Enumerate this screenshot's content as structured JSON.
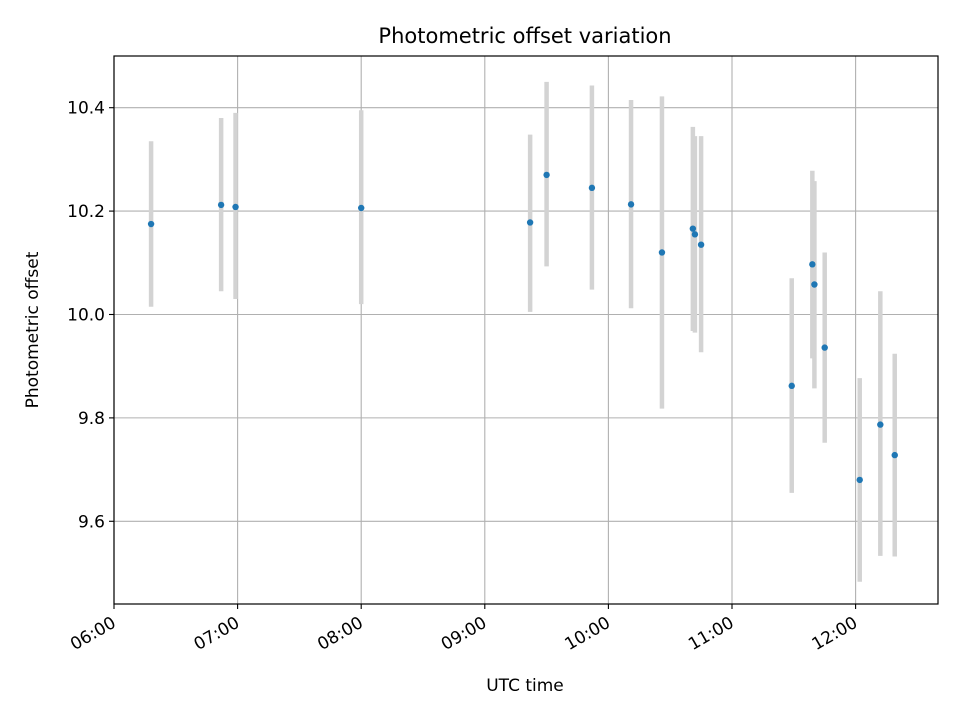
{
  "chart_data": {
    "type": "scatter",
    "title": "Photometric offset variation",
    "xlabel": "UTC time",
    "ylabel": "Photometric offset",
    "x_axis": {
      "type": "time",
      "range": [
        "06:00",
        "12:40"
      ],
      "ticks": [
        "06:00",
        "07:00",
        "08:00",
        "09:00",
        "10:00",
        "11:00",
        "12:00"
      ]
    },
    "y_axis": {
      "range": [
        9.44,
        10.5
      ],
      "ticks": [
        9.6,
        9.8,
        10.0,
        10.2,
        10.4
      ],
      "tick_labels": [
        "9.6",
        "9.8",
        "10.0",
        "10.2",
        "10.4"
      ]
    },
    "grid": true,
    "marker_color": "#1f77b4",
    "errorbar_color": "#d3d3d3",
    "points": [
      {
        "time": "06:18",
        "y": 10.175,
        "ylow": 10.015,
        "yhigh": 10.335
      },
      {
        "time": "06:52",
        "y": 10.212,
        "ylow": 10.045,
        "yhigh": 10.38
      },
      {
        "time": "06:59",
        "y": 10.208,
        "ylow": 10.03,
        "yhigh": 10.39
      },
      {
        "time": "08:00",
        "y": 10.206,
        "ylow": 10.02,
        "yhigh": 10.395
      },
      {
        "time": "09:22",
        "y": 10.178,
        "ylow": 10.005,
        "yhigh": 10.348
      },
      {
        "time": "09:30",
        "y": 10.27,
        "ylow": 10.093,
        "yhigh": 10.45
      },
      {
        "time": "09:52",
        "y": 10.245,
        "ylow": 10.048,
        "yhigh": 10.443
      },
      {
        "time": "10:11",
        "y": 10.213,
        "ylow": 10.012,
        "yhigh": 10.415
      },
      {
        "time": "10:26",
        "y": 10.12,
        "ylow": 9.818,
        "yhigh": 10.422
      },
      {
        "time": "10:41",
        "y": 10.166,
        "ylow": 9.968,
        "yhigh": 10.363
      },
      {
        "time": "10:42",
        "y": 10.155,
        "ylow": 9.965,
        "yhigh": 10.345
      },
      {
        "time": "10:45",
        "y": 10.135,
        "ylow": 9.927,
        "yhigh": 10.345
      },
      {
        "time": "11:29",
        "y": 9.862,
        "ylow": 9.655,
        "yhigh": 10.07
      },
      {
        "time": "11:39",
        "y": 10.097,
        "ylow": 9.915,
        "yhigh": 10.278
      },
      {
        "time": "11:40",
        "y": 10.058,
        "ylow": 9.857,
        "yhigh": 10.258
      },
      {
        "time": "11:45",
        "y": 9.936,
        "ylow": 9.752,
        "yhigh": 10.12
      },
      {
        "time": "12:02",
        "y": 9.68,
        "ylow": 9.483,
        "yhigh": 9.877
      },
      {
        "time": "12:12",
        "y": 9.787,
        "ylow": 9.533,
        "yhigh": 10.045
      },
      {
        "time": "12:19",
        "y": 9.728,
        "ylow": 9.532,
        "yhigh": 9.924
      }
    ]
  }
}
